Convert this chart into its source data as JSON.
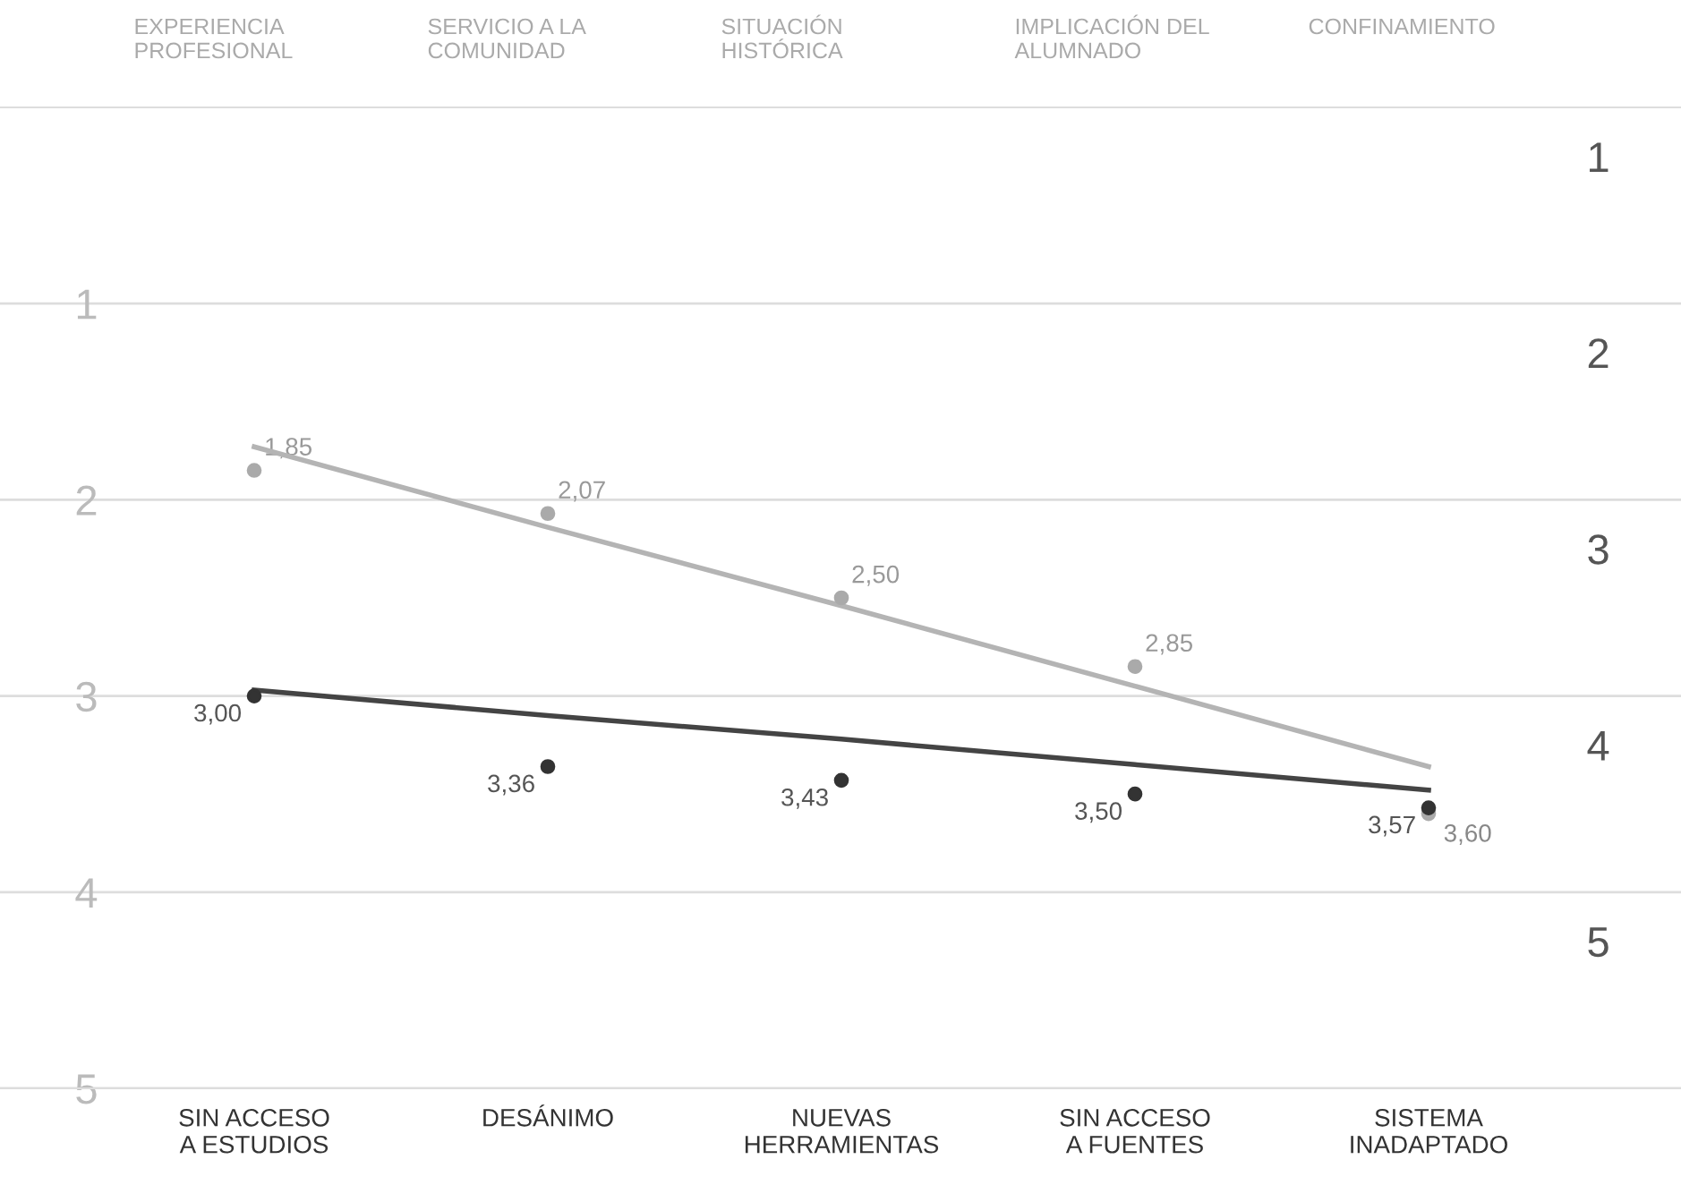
{
  "chart_data": {
    "type": "scatter",
    "categories": [
      "SIN ACCESO\nA ESTUDIOS",
      "DESÁNIMO",
      "NUEVAS\nHERRAMIENTAS",
      "SIN ACCESO\nA FUENTES",
      "SISTEMA\nINADAPTADO"
    ],
    "annotations": [
      "EXPERIENCIA\nPROFESIONAL",
      "SERVICIO A LA\nCOMUNIDAD",
      "SITUACIÓN\nHISTÓRICA",
      "IMPLICACIÓN DEL\nALUMNADO",
      "CONFINAMIENTO"
    ],
    "series": [
      {
        "color": "#aaaaaa",
        "values": [
          1.85,
          2.07,
          2.5,
          2.85,
          3.6
        ],
        "value_labels": [
          "1,85",
          "2,07",
          "2,50",
          "2,85",
          "3,60"
        ]
      },
      {
        "color": "#333333",
        "values": [
          3.0,
          3.36,
          3.43,
          3.5,
          3.57
        ],
        "value_labels": [
          "3,00",
          "3,36",
          "3,43",
          "3,50",
          "3,57"
        ]
      },
      {
        "type": "line",
        "marker": "none",
        "color": "#b4b4b4",
        "values": [
          1.73,
          2.14,
          2.54,
          2.95,
          3.36
        ]
      },
      {
        "type": "line",
        "marker": "none",
        "color": "#444444",
        "values": [
          2.97,
          3.1,
          3.22,
          3.35,
          3.48
        ]
      }
    ],
    "ylim": [
      5,
      0
    ],
    "yticks": [
      1,
      2,
      3,
      4,
      5
    ],
    "y2lim": [
      5.75,
      0.75
    ],
    "y2ticks": [
      1,
      2,
      3,
      4,
      5
    ],
    "marker": "circle",
    "grid": true,
    "legend": false
  }
}
